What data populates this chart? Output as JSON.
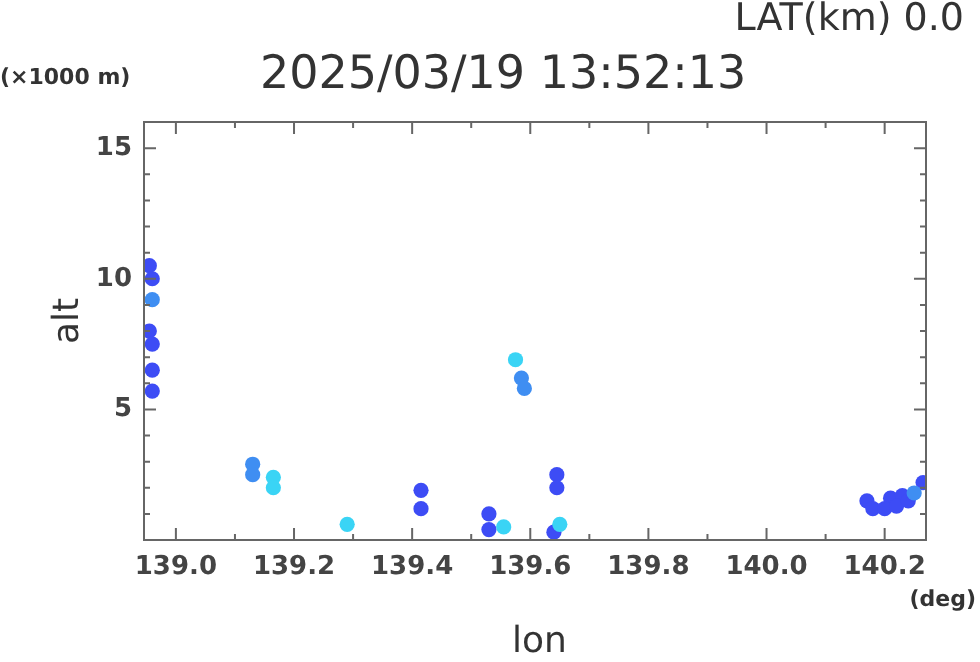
{
  "chart_data": {
    "type": "scatter",
    "title": "2025/03/19 13:52:13",
    "subtitle": "LAT(km) 0.0",
    "xlabel": "lon",
    "ylabel": "alt",
    "annotations": [
      "(×1000 m)",
      "(deg)"
    ],
    "marker": "circle",
    "xlim": [
      138.946,
      140.27
    ],
    "ylim": [
      0,
      16
    ],
    "xticks": [
      {
        "value": 139.0,
        "label": "139.0"
      },
      {
        "value": 139.1,
        "label": null
      },
      {
        "value": 139.2,
        "label": "139.2"
      },
      {
        "value": 139.3,
        "label": null
      },
      {
        "value": 139.4,
        "label": "139.4"
      },
      {
        "value": 139.5,
        "label": null
      },
      {
        "value": 139.6,
        "label": "139.6"
      },
      {
        "value": 139.7,
        "label": null
      },
      {
        "value": 139.8,
        "label": "139.8"
      },
      {
        "value": 139.9,
        "label": null
      },
      {
        "value": 140.0,
        "label": "140.0"
      },
      {
        "value": 140.1,
        "label": null
      },
      {
        "value": 140.2,
        "label": "140.2"
      }
    ],
    "yticks": [
      {
        "value": 1,
        "label": null
      },
      {
        "value": 2,
        "label": null
      },
      {
        "value": 3,
        "label": null
      },
      {
        "value": 4,
        "label": null
      },
      5,
      {
        "value": 6,
        "label": null
      },
      {
        "value": 7,
        "label": null
      },
      {
        "value": 8,
        "label": null
      },
      {
        "value": 9,
        "label": null
      },
      10,
      {
        "value": 11,
        "label": null
      },
      {
        "value": 12,
        "label": null
      },
      {
        "value": 13,
        "label": null
      },
      {
        "value": 14,
        "label": null
      },
      15
    ],
    "series": [
      {
        "color": "#3d4cf5",
        "x": [
          138.955,
          138.96,
          138.955,
          138.96,
          138.96,
          138.96,
          139.415,
          139.415,
          139.53,
          139.53,
          139.645,
          139.645,
          139.64,
          140.17,
          140.21,
          140.23,
          140.265,
          140.18,
          140.2,
          140.22,
          140.24
        ],
        "values": [
          10.5,
          10.0,
          8.0,
          7.5,
          6.5,
          5.7,
          1.9,
          1.2,
          1.0,
          0.4,
          2.5,
          2.0,
          0.3,
          1.5,
          1.6,
          1.7,
          2.2,
          1.2,
          1.2,
          1.3,
          1.5
        ]
      },
      {
        "color": "#3f8ef2",
        "x": [
          138.96,
          139.13,
          139.13,
          139.585,
          139.59,
          140.25
        ],
        "values": [
          9.2,
          2.9,
          2.5,
          6.2,
          5.8,
          1.8
        ]
      },
      {
        "color": "#3ad4f5",
        "x": [
          139.165,
          139.165,
          139.29,
          139.555,
          139.65,
          139.575
        ],
        "values": [
          2.4,
          2.0,
          0.6,
          0.5,
          0.6,
          6.9
        ]
      }
    ]
  }
}
